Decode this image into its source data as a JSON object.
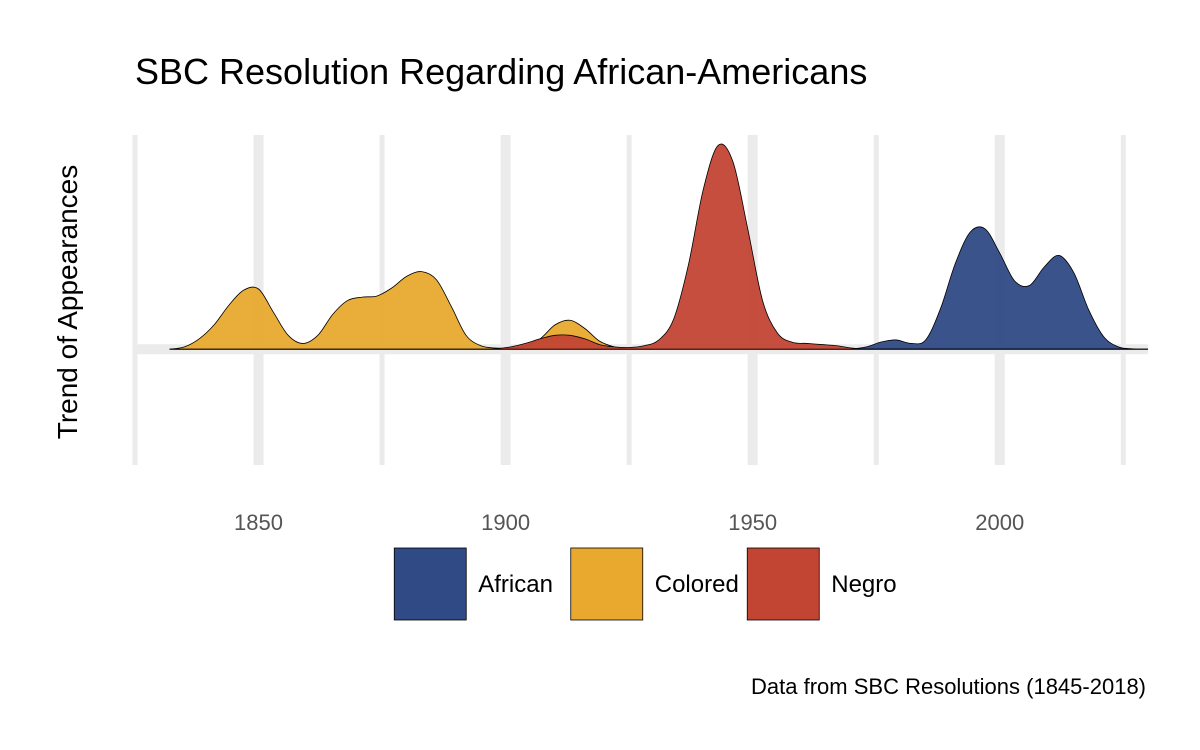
{
  "chart_data": {
    "type": "area",
    "title": "SBC Resolution Regarding African-Americans",
    "ylabel": "Trend of Appearances",
    "xlabel": "",
    "caption": "Data from SBC Resolutions (1845-2018)",
    "xlim": [
      1825,
      2030
    ],
    "x_ticks": [
      1850,
      1900,
      1950,
      2000
    ],
    "x_tick_labels": [
      "1850",
      "1900",
      "1950",
      "2000"
    ],
    "ylim": [
      -1.0,
      1.85
    ],
    "grid": true,
    "legend_position": "bottom",
    "density_grid_x": [
      1832,
      1835,
      1838,
      1841,
      1844,
      1847,
      1850,
      1853,
      1856,
      1859,
      1862,
      1865,
      1868,
      1871,
      1874,
      1877,
      1880,
      1883,
      1886,
      1889,
      1892,
      1895,
      1898,
      1901,
      1904,
      1907,
      1910,
      1913,
      1916,
      1919,
      1922,
      1925,
      1928,
      1931,
      1934,
      1937,
      1940,
      1943,
      1946,
      1949,
      1952,
      1955,
      1958,
      1961,
      1964,
      1967,
      1970,
      1973,
      1976,
      1979,
      1982,
      1985,
      1988,
      1991,
      1994,
      1997,
      2000,
      2003,
      2006,
      2009,
      2012,
      2015,
      2018,
      2021,
      2024,
      2027,
      2030
    ],
    "series": [
      {
        "name": "African",
        "color": "#304a85",
        "density": [
          0,
          0,
          0,
          0,
          0,
          0,
          0,
          0,
          0,
          0,
          0,
          0,
          0,
          0,
          0,
          0,
          0,
          0,
          0,
          0,
          0,
          0,
          0,
          0,
          0,
          0,
          0,
          0,
          0,
          0,
          0,
          0,
          0,
          0,
          0,
          0,
          0,
          0,
          0,
          0,
          0,
          0,
          0,
          0,
          0,
          0,
          0.003,
          0.02,
          0.062,
          0.08,
          0.05,
          0.08,
          0.35,
          0.74,
          1.01,
          1.04,
          0.83,
          0.59,
          0.55,
          0.71,
          0.81,
          0.66,
          0.34,
          0.11,
          0.02,
          0.003,
          0
        ]
      },
      {
        "name": "Colored",
        "color": "#e8a92e",
        "density": [
          0,
          0.02,
          0.09,
          0.21,
          0.38,
          0.51,
          0.52,
          0.32,
          0.12,
          0.05,
          0.12,
          0.3,
          0.42,
          0.45,
          0.46,
          0.53,
          0.63,
          0.67,
          0.6,
          0.37,
          0.12,
          0.03,
          0.01,
          0.01,
          0.03,
          0.09,
          0.21,
          0.25,
          0.18,
          0.07,
          0.02,
          0,
          0,
          0,
          0,
          0,
          0,
          0,
          0,
          0,
          0,
          0,
          0,
          0,
          0,
          0,
          0,
          0,
          0,
          0,
          0,
          0,
          0,
          0,
          0,
          0,
          0,
          0,
          0,
          0,
          0,
          0,
          0,
          0,
          0,
          0,
          0
        ]
      },
      {
        "name": "Negro",
        "color": "#c24534",
        "density": [
          0,
          0,
          0,
          0,
          0,
          0,
          0,
          0,
          0,
          0,
          0,
          0,
          0,
          0,
          0,
          0,
          0,
          0,
          0,
          0,
          0,
          0,
          0.005,
          0.02,
          0.05,
          0.09,
          0.12,
          0.12,
          0.09,
          0.04,
          0.02,
          0.015,
          0.03,
          0.08,
          0.26,
          0.73,
          1.38,
          1.76,
          1.62,
          1.04,
          0.42,
          0.14,
          0.06,
          0.05,
          0.04,
          0.03,
          0.01,
          0,
          0,
          0,
          0,
          0,
          0,
          0,
          0,
          0,
          0,
          0,
          0,
          0,
          0,
          0,
          0,
          0,
          0,
          0,
          0
        ]
      }
    ]
  }
}
